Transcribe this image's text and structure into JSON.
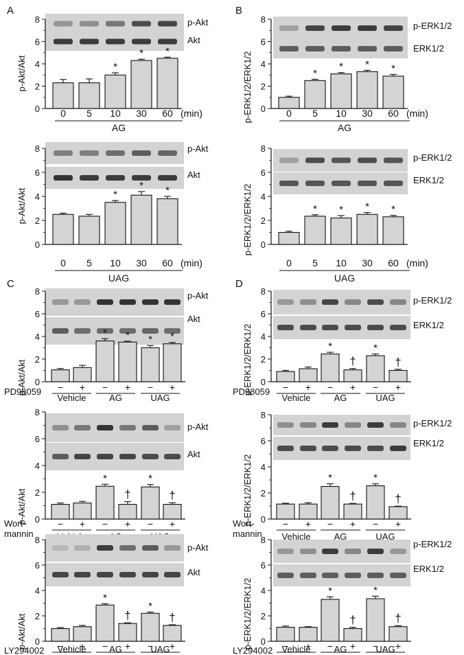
{
  "panel_letters": [
    "A",
    "B",
    "C",
    "D"
  ],
  "chart_data": [
    {
      "panel": "A",
      "type": "bar",
      "ylabel": "p-Akt/Akt",
      "ylim": [
        0,
        8
      ],
      "yticks": [
        "0",
        "2",
        "4",
        "6",
        "8"
      ],
      "blot_labels": [
        "p-Akt",
        "Akt"
      ],
      "categories": [
        "0",
        "5",
        "10",
        "30",
        "60"
      ],
      "unit": "(min)",
      "group_labels": [
        "AG"
      ],
      "values": [
        2.3,
        2.3,
        3.0,
        4.3,
        4.5
      ],
      "errors": [
        0.3,
        0.35,
        0.2,
        0.12,
        0.1
      ],
      "marks": [
        "",
        "",
        "*",
        "*",
        "*"
      ]
    },
    {
      "panel": "B",
      "type": "bar",
      "ylabel": "p-ERK1/2/ERK1/2",
      "ylim": [
        0,
        8
      ],
      "yticks": [
        "0",
        "2",
        "4",
        "6",
        "8"
      ],
      "blot_labels": [
        "p-ERK1/2",
        "ERK1/2"
      ],
      "categories": [
        "0",
        "5",
        "10",
        "30",
        "60"
      ],
      "unit": "(min)",
      "group_labels": [
        "AG"
      ],
      "values": [
        1.0,
        2.5,
        3.1,
        3.3,
        2.9
      ],
      "errors": [
        0.1,
        0.12,
        0.12,
        0.12,
        0.15
      ],
      "marks": [
        "",
        "*",
        "*",
        "*",
        "*"
      ]
    },
    {
      "panel": "A",
      "type": "bar",
      "ylabel": "p-Akt/Akt",
      "ylim": [
        0,
        8
      ],
      "yticks": [
        "0",
        "2",
        "4",
        "6",
        "8"
      ],
      "blot_labels": [
        "p-Akt",
        "Akt"
      ],
      "categories": [
        "0",
        "5",
        "10",
        "30",
        "60"
      ],
      "unit": "(min)",
      "group_labels": [
        "UAG"
      ],
      "values": [
        2.5,
        2.35,
        3.5,
        4.1,
        3.8
      ],
      "errors": [
        0.1,
        0.15,
        0.15,
        0.3,
        0.2
      ],
      "marks": [
        "",
        "",
        "*",
        "*",
        "*"
      ]
    },
    {
      "panel": "B",
      "type": "bar",
      "ylabel": "p-ERK1/2/ERK1/2",
      "ylim": [
        0,
        8
      ],
      "yticks": [
        "0",
        "2",
        "4",
        "6",
        "8"
      ],
      "blot_labels": [
        "p-ERK1/2",
        "ERK1/2"
      ],
      "categories": [
        "0",
        "5",
        "10",
        "30",
        "60"
      ],
      "unit": "(min)",
      "group_labels": [
        "UAG"
      ],
      "values": [
        1.0,
        2.35,
        2.2,
        2.5,
        2.3
      ],
      "errors": [
        0.1,
        0.12,
        0.2,
        0.15,
        0.12
      ],
      "marks": [
        "",
        "*",
        "*",
        "*",
        "*"
      ]
    },
    {
      "panel": "C",
      "type": "bar",
      "ylabel": "p-Akt/Akt",
      "ylim": [
        0,
        8
      ],
      "yticks": [
        "0",
        "2",
        "4",
        "6",
        "8"
      ],
      "blot_labels": [
        "p-Akt",
        "Akt"
      ],
      "categories": [
        "−",
        "+",
        "−",
        "+",
        "−",
        "+"
      ],
      "treatment": [
        "PD98059"
      ],
      "group_labels": [
        "Vehicle",
        "AG",
        "UAG"
      ],
      "values": [
        1.05,
        1.25,
        3.6,
        3.5,
        3.0,
        3.35
      ],
      "errors": [
        0.12,
        0.2,
        0.2,
        0.08,
        0.2,
        0.12
      ],
      "marks": [
        "",
        "",
        "*",
        "*",
        "*",
        "*"
      ]
    },
    {
      "panel": "D",
      "type": "bar",
      "ylabel": "p-ERK1/2/ERK1/2",
      "ylim": [
        0,
        8
      ],
      "yticks": [
        "0",
        "2",
        "4",
        "6",
        "8"
      ],
      "blot_labels": [
        "p-ERK1/2",
        "ERK1/2"
      ],
      "categories": [
        "−",
        "+",
        "−",
        "+",
        "−",
        "+"
      ],
      "treatment": [
        "PD98059"
      ],
      "group_labels": [
        "Vehicle",
        "AG",
        "UAG"
      ],
      "values": [
        0.9,
        1.15,
        2.45,
        1.05,
        2.3,
        1.0
      ],
      "errors": [
        0.1,
        0.15,
        0.15,
        0.12,
        0.15,
        0.1
      ],
      "marks": [
        "",
        "",
        "*",
        "†",
        "*",
        "†"
      ]
    },
    {
      "panel": "C",
      "type": "bar",
      "ylabel": "p-Akt/Akt",
      "ylim": [
        0,
        8
      ],
      "yticks": [
        "0",
        "2",
        "4",
        "6",
        "8"
      ],
      "blot_labels": [
        "p-Akt",
        "Akt"
      ],
      "categories": [
        "−",
        "+",
        "−",
        "+",
        "−",
        "+"
      ],
      "treatment": [
        "Wort-",
        "mannin"
      ],
      "group_labels": [
        "Vehicle",
        "AG",
        "UAG"
      ],
      "values": [
        1.1,
        1.2,
        2.45,
        1.1,
        2.4,
        1.1
      ],
      "errors": [
        0.1,
        0.12,
        0.15,
        0.2,
        0.18,
        0.12
      ],
      "marks": [
        "",
        "",
        "*",
        "†",
        "*",
        "†"
      ]
    },
    {
      "panel": "D",
      "type": "bar",
      "ylabel": "p-ERK1/2/ERK1/2",
      "ylim": [
        0,
        8
      ],
      "yticks": [
        "0",
        "2",
        "4",
        "6",
        "8"
      ],
      "blot_labels": [
        "p-ERK1/2",
        "ERK1/2"
      ],
      "categories": [
        "−",
        "+",
        "−",
        "+",
        "−",
        "+"
      ],
      "treatment": [
        "Wort-",
        "mannin"
      ],
      "group_labels": [
        "Vehicle",
        "AG",
        "UAG"
      ],
      "values": [
        1.15,
        1.15,
        2.5,
        1.15,
        2.55,
        0.95
      ],
      "errors": [
        0.06,
        0.1,
        0.2,
        0.05,
        0.15,
        0.04
      ],
      "marks": [
        "",
        "",
        "*",
        "†",
        "*",
        "†"
      ]
    },
    {
      "panel": "C",
      "type": "bar",
      "ylabel": "p-Akt/Akt",
      "ylim": [
        0,
        8
      ],
      "yticks": [
        "0",
        "2",
        "4",
        "6",
        "8"
      ],
      "blot_labels": [
        "p-Akt",
        "Akt"
      ],
      "categories": [
        "−",
        "+",
        "−",
        "+",
        "−",
        "+"
      ],
      "treatment": [
        "LY294002"
      ],
      "group_labels": [
        "Vehicle",
        "AG",
        "UAG"
      ],
      "values": [
        1.0,
        1.15,
        2.85,
        1.4,
        2.2,
        1.25
      ],
      "errors": [
        0.08,
        0.1,
        0.1,
        0.05,
        0.1,
        0.05
      ],
      "marks": [
        "",
        "",
        "*",
        "†",
        "*",
        "†"
      ]
    },
    {
      "panel": "D",
      "type": "bar",
      "ylabel": "p-ERK1/2/ERK1/2",
      "ylim": [
        0,
        8
      ],
      "yticks": [
        "0",
        "2",
        "4",
        "6",
        "8"
      ],
      "blot_labels": [
        "p-ERK1/2",
        "ERK1/2"
      ],
      "categories": [
        "−",
        "+",
        "−",
        "+",
        "−",
        "+"
      ],
      "treatment": [
        "LY294002"
      ],
      "group_labels": [
        "Vehicle",
        "AG",
        "UAG"
      ],
      "values": [
        1.1,
        1.1,
        3.3,
        1.0,
        3.35,
        1.15
      ],
      "errors": [
        0.1,
        0.05,
        0.2,
        0.1,
        0.2,
        0.08
      ],
      "marks": [
        "",
        "",
        "*",
        "†",
        "*",
        "†"
      ]
    }
  ],
  "colors": {
    "bar_fill": "#d4d4d4",
    "bar_stroke": "#111111",
    "blot_bg": "#d3d3d3",
    "band_dark": "#2b2b2b"
  }
}
